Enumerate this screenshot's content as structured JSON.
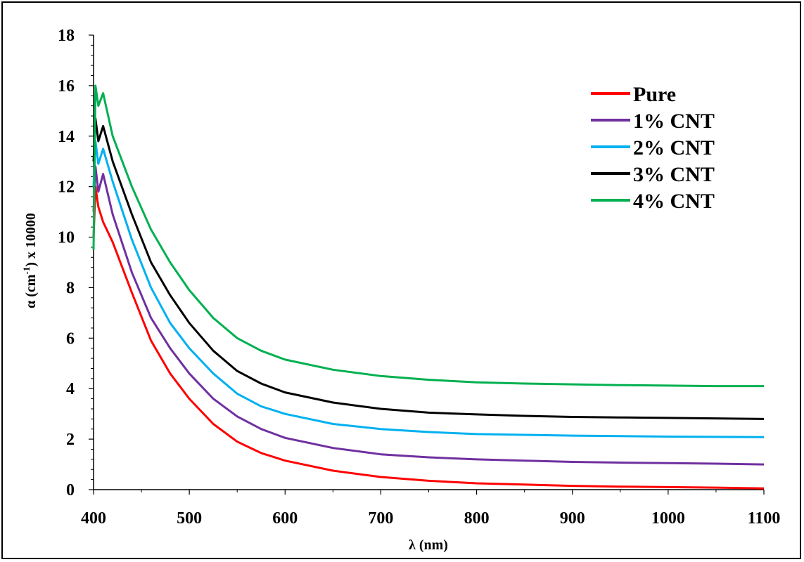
{
  "chart_data": {
    "type": "line",
    "title": "",
    "xlabel": "λ (nm)",
    "ylabel_main": "α (cm",
    "ylabel_sup": "-1",
    "ylabel_tail": ")  x 10000",
    "xlim": [
      400,
      1100
    ],
    "ylim": [
      0,
      18
    ],
    "x_ticks": [
      400,
      500,
      600,
      700,
      800,
      900,
      1000,
      1100
    ],
    "y_ticks": [
      0,
      2,
      4,
      6,
      8,
      10,
      12,
      14,
      16,
      18
    ],
    "grid": false,
    "legend_position": "top-right",
    "x": [
      400,
      402,
      405,
      410,
      420,
      440,
      460,
      480,
      500,
      525,
      550,
      575,
      600,
      650,
      700,
      750,
      800,
      850,
      900,
      950,
      1000,
      1050,
      1100
    ],
    "series": [
      {
        "name": "Pure",
        "color": "#ff0000",
        "values": [
          10.0,
          12.0,
          11.2,
          10.6,
          9.8,
          7.8,
          5.9,
          4.6,
          3.6,
          2.6,
          1.9,
          1.45,
          1.15,
          0.75,
          0.5,
          0.35,
          0.25,
          0.2,
          0.15,
          0.12,
          0.1,
          0.08,
          0.05
        ]
      },
      {
        "name": "1% CNT",
        "color": "#7030a0",
        "values": [
          11.0,
          12.8,
          11.8,
          12.5,
          10.9,
          8.6,
          6.8,
          5.6,
          4.6,
          3.6,
          2.9,
          2.4,
          2.05,
          1.65,
          1.4,
          1.28,
          1.2,
          1.15,
          1.1,
          1.07,
          1.05,
          1.03,
          1.0
        ]
      },
      {
        "name": "2% CNT",
        "color": "#00b0f0",
        "values": [
          12.0,
          13.8,
          12.9,
          13.5,
          12.2,
          9.9,
          8.0,
          6.6,
          5.6,
          4.6,
          3.8,
          3.3,
          3.0,
          2.6,
          2.4,
          2.28,
          2.2,
          2.17,
          2.14,
          2.12,
          2.1,
          2.09,
          2.08
        ]
      },
      {
        "name": "3% CNT",
        "color": "#000000",
        "values": [
          13.0,
          14.7,
          13.8,
          14.4,
          13.0,
          10.9,
          9.0,
          7.7,
          6.6,
          5.5,
          4.7,
          4.2,
          3.85,
          3.45,
          3.2,
          3.05,
          2.98,
          2.92,
          2.88,
          2.86,
          2.84,
          2.82,
          2.8
        ]
      },
      {
        "name": "4% CNT",
        "color": "#00b050",
        "values": [
          9.5,
          16.0,
          15.2,
          15.7,
          14.0,
          12.0,
          10.3,
          9.0,
          7.9,
          6.8,
          6.0,
          5.5,
          5.15,
          4.75,
          4.5,
          4.35,
          4.25,
          4.2,
          4.17,
          4.14,
          4.12,
          4.1,
          4.1
        ]
      }
    ]
  }
}
